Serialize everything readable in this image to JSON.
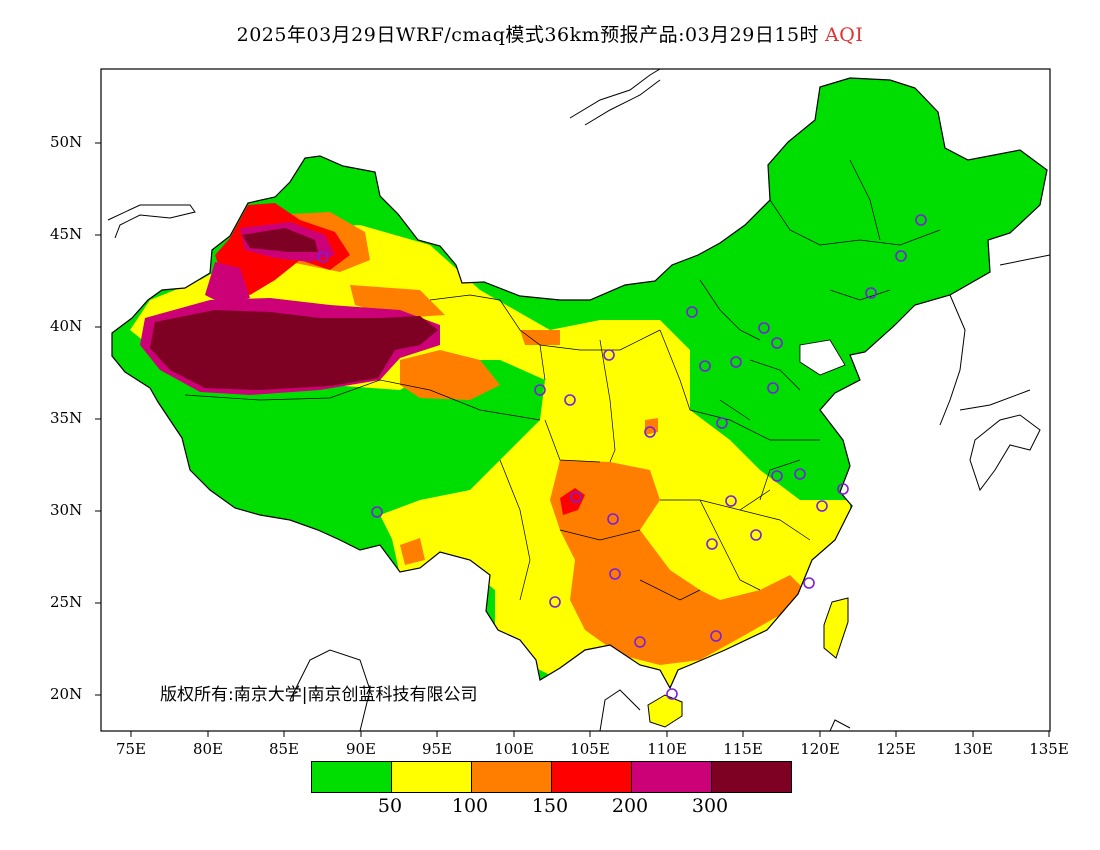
{
  "title": {
    "text": "2025年03月29日WRF/cmaq模式36km预报产品:03月29日15时",
    "product": "AQI",
    "product_color": "#e03030"
  },
  "map": {
    "lat_ticks": [
      "50N",
      "45N",
      "40N",
      "35N",
      "30N",
      "25N",
      "20N"
    ],
    "lon_ticks": [
      "75E",
      "80E",
      "85E",
      "90E",
      "95E",
      "100E",
      "105E",
      "110E",
      "115E",
      "120E",
      "125E",
      "130E",
      "135E"
    ],
    "lon_range": [
      73,
      135
    ],
    "lat_range": [
      18,
      54
    ],
    "copyright": "版权所有:南京大学|南京创蓝科技有限公司"
  },
  "legend": {
    "colors": [
      "#00dd00",
      "#ffff00",
      "#ff7e00",
      "#ff0000",
      "#cc0077",
      "#7e0023"
    ],
    "thresholds": [
      "50",
      "100",
      "150",
      "200",
      "300"
    ]
  }
}
